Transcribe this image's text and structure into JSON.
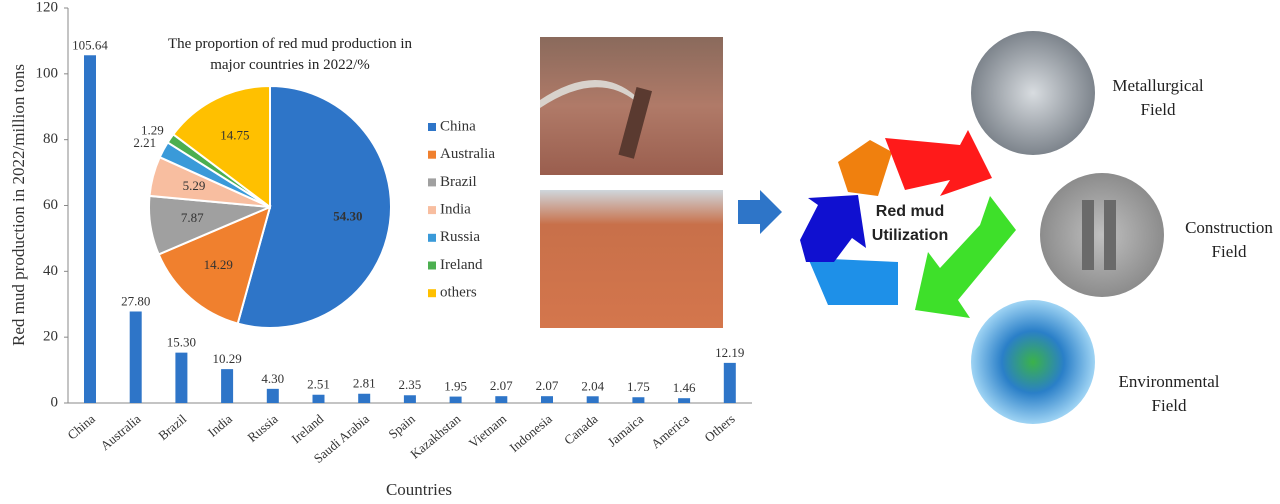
{
  "chart_data": [
    {
      "type": "bar",
      "y_label": "Red mud production in 2022/million tons",
      "x_label": "Countries",
      "categories": [
        "China",
        "Australia",
        "Brazil",
        "India",
        "Russia",
        "Ireland",
        "Saudi Arabia",
        "Spain",
        "Kazakhstan",
        "Vietnam",
        "Indonesia",
        "Canada",
        "Jamaica",
        "America",
        "Others"
      ],
      "values": [
        105.64,
        27.8,
        15.3,
        10.29,
        4.3,
        2.51,
        2.81,
        2.35,
        1.95,
        2.07,
        2.07,
        2.04,
        1.75,
        1.46,
        12.19
      ],
      "value_labels": [
        "105.64",
        "27.80",
        "15.30",
        "10.29",
        "4.30",
        "2.51",
        "2.81",
        "2.35",
        "1.95",
        "2.07",
        "2.07",
        "2.04",
        "1.75",
        "1.46",
        "12.19"
      ],
      "color": "#2e75c8",
      "ylim": [
        0,
        120
      ],
      "yticks": [
        0,
        20,
        40,
        60,
        80,
        100,
        120
      ],
      "grid": false
    },
    {
      "type": "pie",
      "title": "The proportion of red mud production in major countries in 2022/%",
      "categories": [
        "China",
        "Australia",
        "Brazil",
        "India",
        "Russia",
        "Ireland",
        "others"
      ],
      "values": [
        54.3,
        14.29,
        7.87,
        5.29,
        2.21,
        1.29,
        14.75
      ],
      "value_labels": [
        "54.30",
        "14.29",
        "7.87",
        "5.29",
        "2.21",
        "1.29",
        "14.75"
      ],
      "colors": [
        "#2e75c8",
        "#f0802e",
        "#a0a0a0",
        "#f8bea0",
        "#3a9ad9",
        "#4caf50",
        "#ffc000"
      ]
    }
  ],
  "diagram": {
    "center": "Red mud Utilization",
    "fields": [
      "Metallurgical Field",
      "Construction Field",
      "Environmental Field"
    ]
  }
}
